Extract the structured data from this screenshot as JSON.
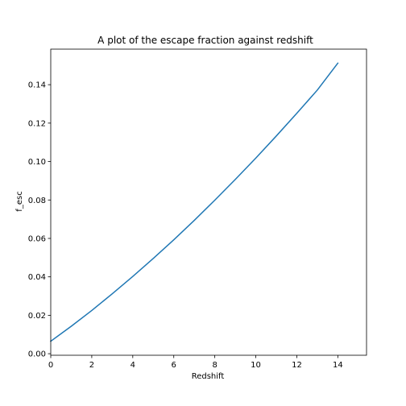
{
  "chart_data": {
    "type": "line",
    "title": "A plot of the escape fraction against redshift",
    "xlabel": "Redshift",
    "ylabel": "f_esc",
    "xlim": [
      0,
      15.4
    ],
    "ylim": [
      -0.0008,
      0.1585
    ],
    "xticks": [
      0,
      2,
      4,
      6,
      8,
      10,
      12,
      14
    ],
    "xtick_labels": [
      "0",
      "2",
      "4",
      "6",
      "8",
      "10",
      "12",
      "14"
    ],
    "yticks": [
      0,
      0.02,
      0.04,
      0.06,
      0.08,
      0.1,
      0.12,
      0.14
    ],
    "ytick_labels": [
      "0.00",
      "0.02",
      "0.04",
      "0.06",
      "0.08",
      "0.10",
      "0.12",
      "0.14"
    ],
    "grid": false,
    "series": [
      {
        "color": "#1f77b4",
        "x": [
          0,
          1,
          2,
          3,
          4,
          5,
          6,
          7,
          8,
          9,
          10,
          11,
          12,
          13,
          14
        ],
        "y": [
          0.0065,
          0.0143,
          0.0225,
          0.0312,
          0.0402,
          0.0496,
          0.0593,
          0.0694,
          0.0799,
          0.0907,
          0.1018,
          0.1133,
          0.1251,
          0.1372,
          0.1512
        ]
      }
    ]
  }
}
